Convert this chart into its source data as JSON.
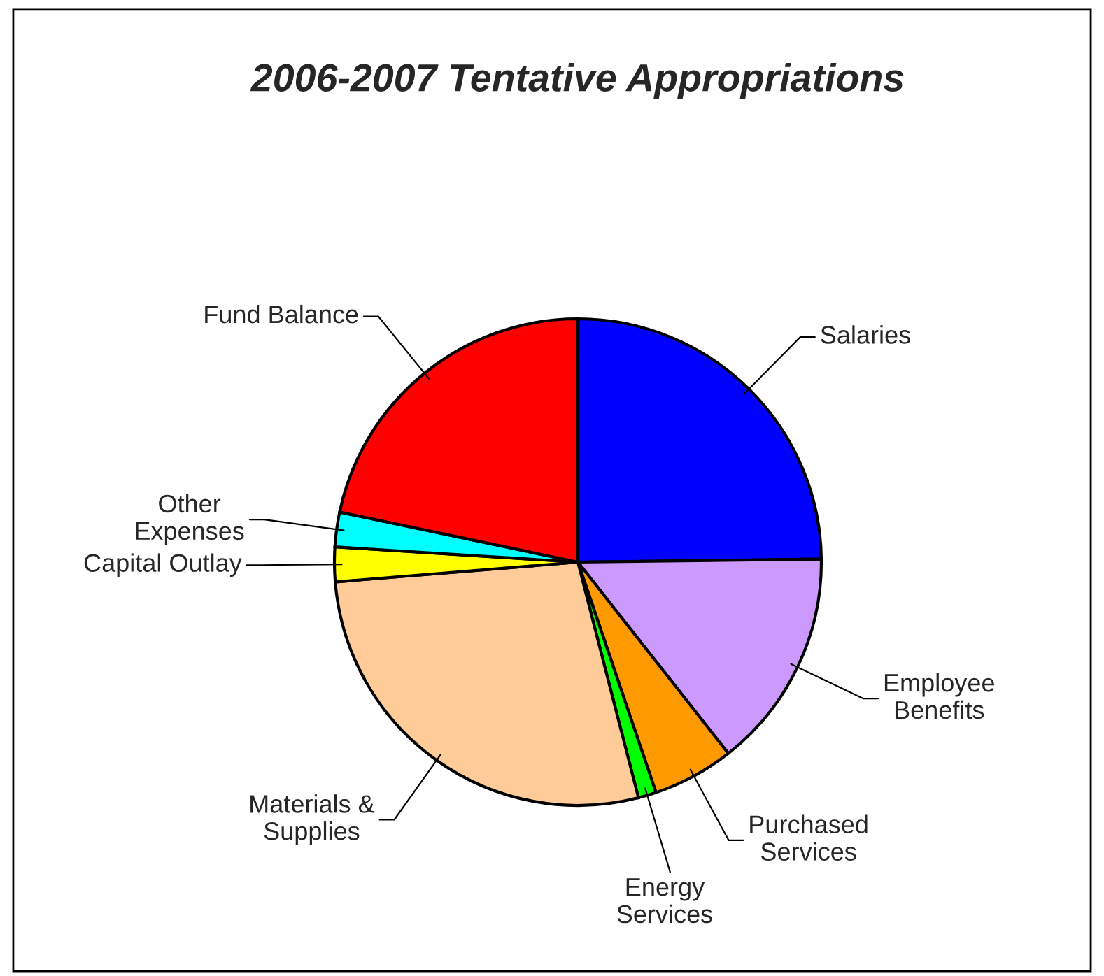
{
  "chart_data": {
    "type": "pie",
    "title": "2006-2007 Tentative Appropriations",
    "categories": [
      "Salaries",
      "Employee\nBenefits",
      "Purchased\nServices",
      "Energy\nServices",
      "Materials &\nSupplies",
      "Capital Outlay",
      "Other\nExpenses",
      "Fund Balance"
    ],
    "values": [
      24.8,
      14.6,
      5.4,
      1.2,
      27.7,
      2.3,
      2.3,
      21.7
    ],
    "colors": [
      "#0000ff",
      "#cc99ff",
      "#ff9900",
      "#00ff00",
      "#ffcc99",
      "#ffff00",
      "#00ffff",
      "#ff0000"
    ],
    "legend": false
  }
}
